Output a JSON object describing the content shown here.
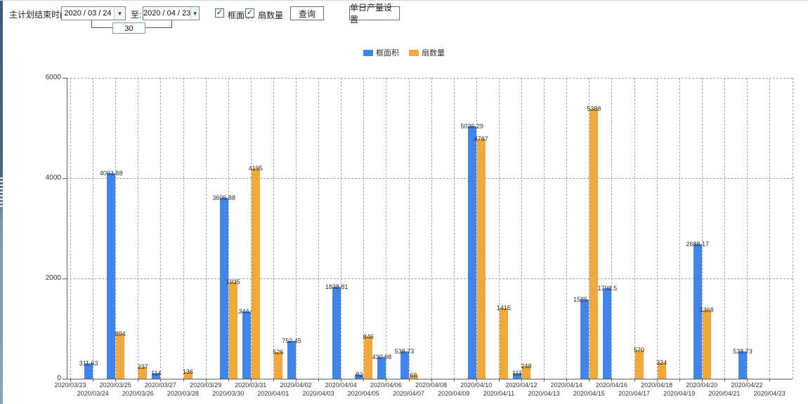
{
  "toolbar": {
    "main_label": "主计划结束时间:",
    "date_from": "2020 / 03 / 24",
    "to_label": "至:",
    "date_to": "2020 / 04 / 23",
    "interval_value": "30",
    "checkbox_frame_area_label": "框面积",
    "checkbox_sash_count_label": "扇数量",
    "checkbox_checked_glyph": "✓",
    "query_button_label": "查询",
    "daily_output_button_label": "单日产量设置",
    "picker_arrow_glyph": "▼"
  },
  "legend": {
    "items": [
      {
        "label": "框面积",
        "color": "#4285e8"
      },
      {
        "label": "扇数量",
        "color": "#f2a93c"
      }
    ]
  },
  "chart_data": {
    "type": "bar",
    "title": "",
    "xlabel": "",
    "ylabel": "",
    "ylim": [
      0,
      6000
    ],
    "yticks": [
      0,
      2000,
      4000,
      6000
    ],
    "grid": true,
    "legend_position": "top",
    "categories": [
      "2020/03/23",
      "2020/03/24",
      "2020/03/25",
      "2020/03/26",
      "2020/03/27",
      "2020/03/28",
      "2020/03/29",
      "2020/03/30",
      "2020/03/31",
      "2020/04/01",
      "2020/04/02",
      "2020/04/03",
      "2020/04/04",
      "2020/04/05",
      "2020/04/06",
      "2020/04/07",
      "2020/04/08",
      "2020/04/09",
      "2020/04/10",
      "2020/04/11",
      "2020/04/12",
      "2020/04/13",
      "2020/04/14",
      "2020/04/15",
      "2020/04/16",
      "2020/04/17",
      "2020/04/18",
      "2020/04/19",
      "2020/04/20",
      "2020/04/21",
      "2020/04/22",
      "2020/04/23"
    ],
    "series": [
      {
        "name": "框面积",
        "color": "#4285e8",
        "values": [
          null,
          311.63,
          4093.88,
          null,
          114,
          null,
          null,
          3606.88,
          1344.95,
          null,
          752.45,
          null,
          1838.81,
          82,
          430.98,
          538.73,
          null,
          null,
          5036.29,
          null,
          111,
          null,
          null,
          1585.96,
          1798.5,
          null,
          null,
          null,
          2688.17,
          null,
          538.73,
          null
        ]
      },
      {
        "name": "扇数量",
        "color": "#f2a93c",
        "values": [
          null,
          null,
          894,
          237,
          null,
          136,
          null,
          1935,
          4195,
          526,
          null,
          null,
          null,
          846,
          null,
          68,
          null,
          null,
          4787,
          1415,
          248,
          null,
          null,
          5388,
          null,
          570,
          324,
          null,
          1368,
          null,
          null,
          null
        ]
      }
    ]
  }
}
